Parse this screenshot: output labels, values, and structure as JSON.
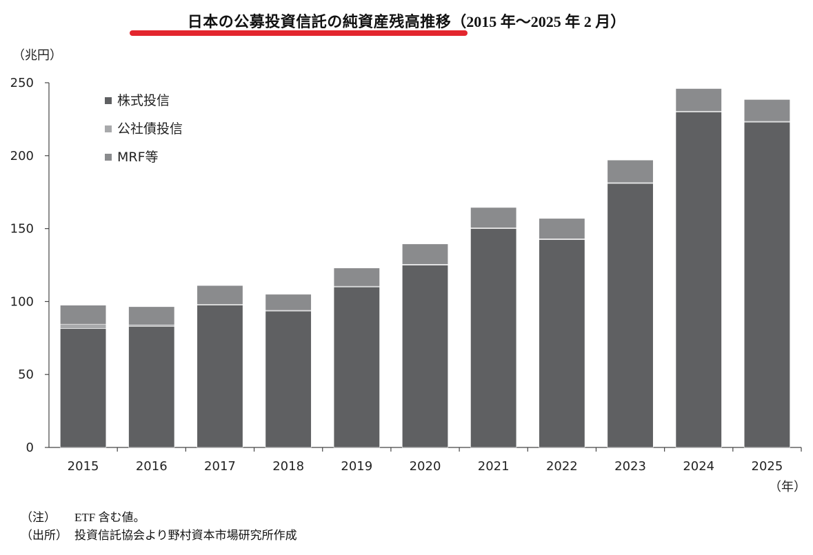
{
  "header": {
    "title": "日本の公募投資信託の純資産残高推移",
    "subtitle": "（2015 年～2025 年 2 月）"
  },
  "colors": {
    "title_underline": "#e3262e",
    "stock": "#5f6062",
    "bond": "#a8a9ab",
    "mrf": "#8a8b8d"
  },
  "chart_data": {
    "type": "bar",
    "stacked": true,
    "categories": [
      "2015",
      "2016",
      "2017",
      "2018",
      "2019",
      "2020",
      "2021",
      "2022",
      "2023",
      "2024",
      "2025"
    ],
    "series": [
      {
        "name": "株式投信",
        "values": [
          81.5,
          83,
          97.5,
          93.5,
          110,
          125,
          150,
          142.5,
          181,
          230,
          223
        ]
      },
      {
        "name": "公社債投信",
        "values": [
          3,
          1,
          0.5,
          0.5,
          0.5,
          0.5,
          0.5,
          0.5,
          0.5,
          0.5,
          0.5
        ]
      },
      {
        "name": "MRF等",
        "values": [
          13,
          12.5,
          13,
          11,
          12.5,
          14,
          14,
          14,
          15.5,
          15.5,
          15
        ]
      }
    ],
    "ylabel": "（兆円）",
    "xlabel": "（年）",
    "ylim": [
      0,
      250
    ],
    "yticks": [
      0,
      50,
      100,
      150,
      200,
      250
    ],
    "legend": "top-left",
    "grid": false
  },
  "notes": [
    {
      "label": "（注）",
      "text": "ETF 含む値。"
    },
    {
      "label": "（出所）",
      "text": "投資信託協会より野村資本市場研究所作成"
    }
  ]
}
